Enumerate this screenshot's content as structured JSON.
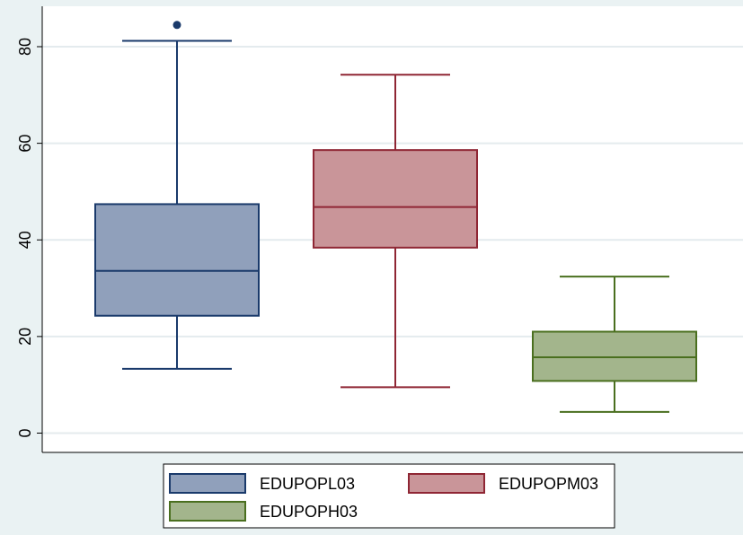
{
  "chart_data": {
    "type": "box",
    "title": "",
    "xlabel": "",
    "ylabel": "",
    "ylim": [
      -4,
      88
    ],
    "yticks": [
      0,
      20,
      40,
      60,
      80
    ],
    "ytick_labels": [
      "0",
      "20",
      "40",
      "60",
      "80"
    ],
    "grid": true,
    "legend_position": "bottom",
    "series": [
      {
        "name": "EDUPOPL03",
        "color": "#1a3a6b",
        "fill": "#90a0bb",
        "whisker_low": 13.3,
        "q1": 24.3,
        "median": 33.6,
        "q3": 47.4,
        "whisker_high": 81.2,
        "outliers": [
          84.5
        ]
      },
      {
        "name": "EDUPOPM03",
        "color": "#8f2634",
        "fill": "#c99599",
        "whisker_low": 9.5,
        "q1": 38.4,
        "median": 46.8,
        "q3": 58.6,
        "whisker_high": 74.2,
        "outliers": []
      },
      {
        "name": "EDUPOPH03",
        "color": "#4a6f1f",
        "fill": "#a3b58c",
        "whisker_low": 4.4,
        "q1": 10.8,
        "median": 15.7,
        "q3": 21.0,
        "whisker_high": 32.4,
        "outliers": []
      }
    ]
  }
}
